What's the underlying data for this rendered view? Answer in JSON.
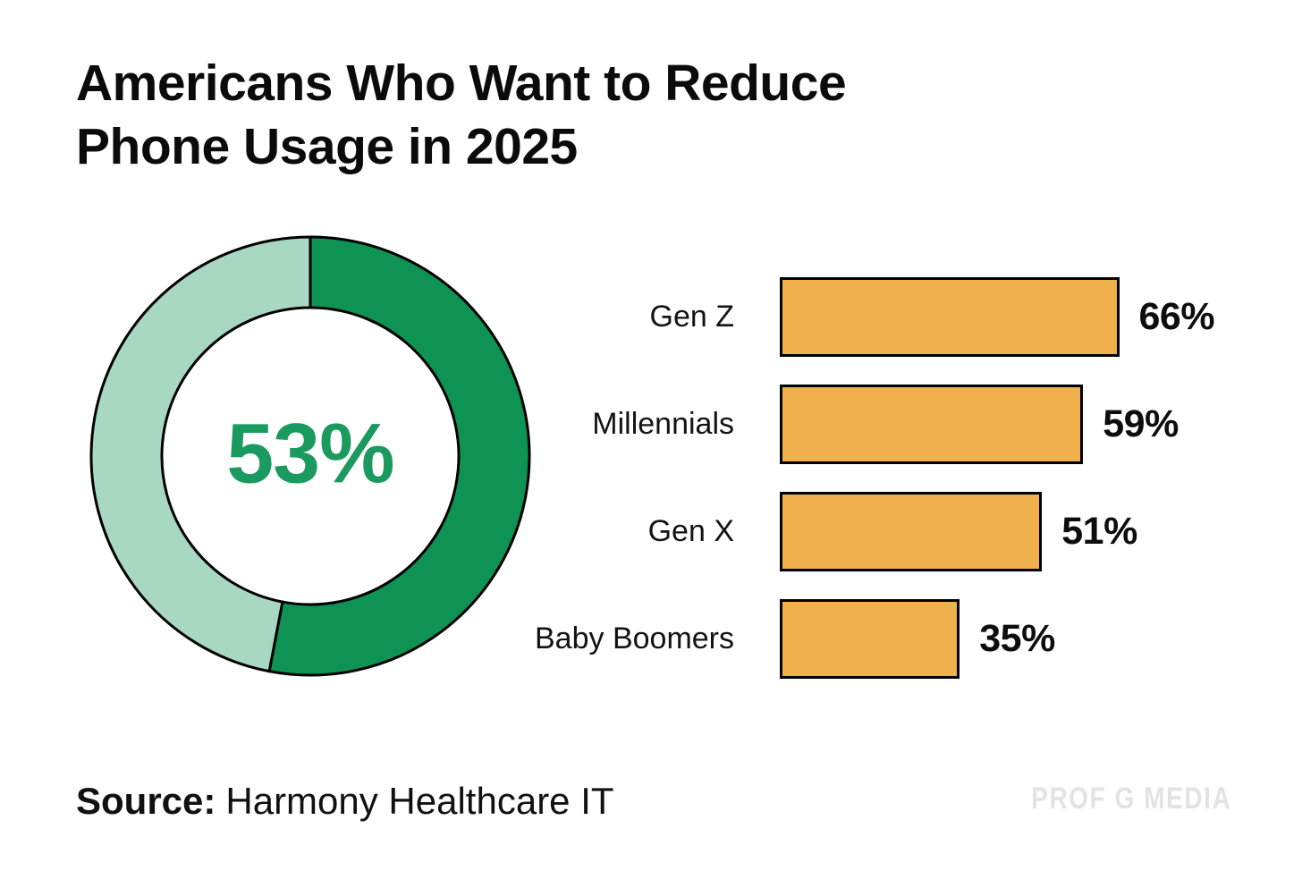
{
  "title": {
    "line1": "Americans Who Want to Reduce",
    "line2": "Phone Usage in 2025"
  },
  "source": {
    "label": "Source:",
    "text": "Harmony Healthcare IT"
  },
  "watermark": "PROF G MEDIA",
  "colors": {
    "outline": "#000000",
    "donut_dark": "#0e9355",
    "donut_light": "#a8d8c1",
    "donut_center_text": "#1a9a5e",
    "bar_fill": "#f0b04c",
    "text": "#111111",
    "watermark_text": "#e3e3e3"
  },
  "chart_data": [
    {
      "type": "pie",
      "subtype": "donut",
      "title": "Americans Who Want to Reduce Phone Usage in 2025",
      "center_label": "53%",
      "values": [
        {
          "name": "share",
          "value": 53,
          "color": "#0e9355"
        },
        {
          "name": "remainder",
          "value": 47,
          "color": "#a8d8c1"
        }
      ],
      "start_angle": "top",
      "direction": "clockwise",
      "legend": "none"
    },
    {
      "type": "bar",
      "orientation": "horizontal",
      "categories": [
        "Gen Z",
        "Millennials",
        "Gen X",
        "Baby Boomers"
      ],
      "values": [
        66,
        59,
        51,
        35
      ],
      "value_labels": [
        "66%",
        "59%",
        "51%",
        "35%"
      ],
      "xlim": [
        0,
        100
      ],
      "grid": "off",
      "axis_labels": "none"
    }
  ]
}
